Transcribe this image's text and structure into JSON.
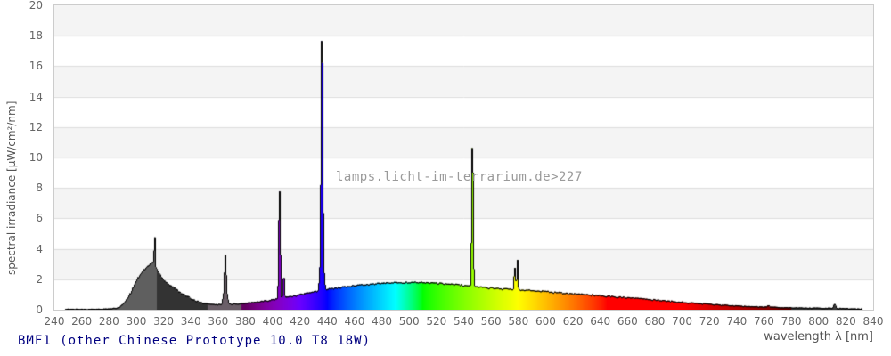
{
  "chart_data": {
    "type": "area",
    "title": "BMF1 (other Chinese Prototype 10.0 T8 18W)",
    "xlabel": "wavelength λ [nm]",
    "ylabel": "spectral irradiance [µW/cm²/nm]",
    "watermark": "lamps.licht-im-terrarium.de>227",
    "xlim": [
      240,
      840
    ],
    "ylim": [
      0,
      20
    ],
    "x_ticks": [
      240,
      260,
      280,
      300,
      320,
      340,
      360,
      380,
      400,
      420,
      440,
      460,
      480,
      500,
      520,
      540,
      560,
      580,
      600,
      620,
      640,
      660,
      680,
      700,
      720,
      740,
      760,
      780,
      800,
      820,
      840
    ],
    "y_ticks": [
      0,
      2,
      4,
      6,
      8,
      10,
      12,
      14,
      16,
      18,
      20
    ],
    "grid": "horizontal gridlines every 2 units, alternating shaded bands",
    "legend": "none",
    "data_range_nm": [
      248,
      832
    ],
    "continuum_points": [
      [
        248,
        0.05
      ],
      [
        260,
        0.05
      ],
      [
        270,
        0.05
      ],
      [
        280,
        0.07
      ],
      [
        285,
        0.12
      ],
      [
        288,
        0.2
      ],
      [
        292,
        0.55
      ],
      [
        296,
        1.15
      ],
      [
        300,
        1.95
      ],
      [
        304,
        2.5
      ],
      [
        307,
        2.75
      ],
      [
        310,
        3.0
      ],
      [
        312,
        3.15
      ],
      [
        314,
        2.8
      ],
      [
        316,
        2.45
      ],
      [
        320,
        1.95
      ],
      [
        324,
        1.65
      ],
      [
        328,
        1.4
      ],
      [
        332,
        1.15
      ],
      [
        336,
        0.92
      ],
      [
        340,
        0.75
      ],
      [
        344,
        0.58
      ],
      [
        348,
        0.46
      ],
      [
        352,
        0.4
      ],
      [
        358,
        0.35
      ],
      [
        362,
        0.36
      ],
      [
        368,
        0.4
      ],
      [
        374,
        0.39
      ],
      [
        380,
        0.44
      ],
      [
        386,
        0.5
      ],
      [
        392,
        0.57
      ],
      [
        398,
        0.65
      ],
      [
        404,
        0.73
      ],
      [
        410,
        0.84
      ],
      [
        416,
        0.94
      ],
      [
        422,
        1.04
      ],
      [
        428,
        1.14
      ],
      [
        434,
        1.25
      ],
      [
        440,
        1.35
      ],
      [
        446,
        1.43
      ],
      [
        452,
        1.5
      ],
      [
        458,
        1.57
      ],
      [
        464,
        1.63
      ],
      [
        470,
        1.68
      ],
      [
        478,
        1.73
      ],
      [
        486,
        1.77
      ],
      [
        494,
        1.79
      ],
      [
        502,
        1.8
      ],
      [
        510,
        1.79
      ],
      [
        518,
        1.76
      ],
      [
        526,
        1.71
      ],
      [
        534,
        1.66
      ],
      [
        542,
        1.6
      ],
      [
        550,
        1.52
      ],
      [
        558,
        1.46
      ],
      [
        566,
        1.4
      ],
      [
        574,
        1.36
      ],
      [
        582,
        1.32
      ],
      [
        590,
        1.27
      ],
      [
        598,
        1.22
      ],
      [
        606,
        1.16
      ],
      [
        614,
        1.1
      ],
      [
        622,
        1.05
      ],
      [
        630,
        1.0
      ],
      [
        640,
        0.94
      ],
      [
        650,
        0.87
      ],
      [
        660,
        0.8
      ],
      [
        670,
        0.73
      ],
      [
        680,
        0.66
      ],
      [
        690,
        0.58
      ],
      [
        700,
        0.51
      ],
      [
        710,
        0.44
      ],
      [
        720,
        0.38
      ],
      [
        730,
        0.32
      ],
      [
        740,
        0.27
      ],
      [
        750,
        0.23
      ],
      [
        760,
        0.2
      ],
      [
        770,
        0.17
      ],
      [
        780,
        0.15
      ],
      [
        790,
        0.13
      ],
      [
        800,
        0.12
      ],
      [
        810,
        0.11
      ],
      [
        818,
        0.1
      ],
      [
        826,
        0.08
      ],
      [
        832,
        0.06
      ]
    ],
    "emission_peaks": [
      {
        "nm": 313.2,
        "value": 5.4,
        "width_nm": 0.7
      },
      {
        "nm": 365.0,
        "value": 3.6,
        "width_nm": 1.0
      },
      {
        "nm": 365.0,
        "value": 1.5,
        "width_nm": 2.2
      },
      {
        "nm": 404.7,
        "value": 8.0,
        "width_nm": 0.9
      },
      {
        "nm": 407.8,
        "value": 2.3,
        "width_nm": 1.0
      },
      {
        "nm": 435.8,
        "value": 18.9,
        "width_nm": 1.0
      },
      {
        "nm": 435.8,
        "value": 6.5,
        "width_nm": 1.7
      },
      {
        "nm": 435.8,
        "value": 2.8,
        "width_nm": 3.2
      },
      {
        "nm": 546.1,
        "value": 11.3,
        "width_nm": 0.9
      },
      {
        "nm": 546.1,
        "value": 3.2,
        "width_nm": 1.7
      },
      {
        "nm": 577.0,
        "value": 2.95,
        "width_nm": 0.8
      },
      {
        "nm": 579.1,
        "value": 3.3,
        "width_nm": 0.8
      },
      {
        "nm": 578.0,
        "value": 1.9,
        "width_nm": 1.8
      },
      {
        "nm": 763.0,
        "value": 0.3,
        "width_nm": 1.5
      },
      {
        "nm": 811.5,
        "value": 0.37,
        "width_nm": 1.3
      }
    ],
    "color_zones": {
      "uvb_end_nm": 315,
      "uvb_fill": "#5f5f5f",
      "uva_dark_end_nm": 352,
      "uva_dark_fill": "#333333",
      "uva_gray_end_nm": 377,
      "uva_gray_fill": "#6b5f68",
      "visible_end_nm": 780,
      "ir_fill": "#3c3c3c"
    },
    "colors": {
      "background": "#ffffff",
      "band_stripe": "#f4f4f4",
      "gridline": "#dddddd",
      "plot_border": "#cccccc",
      "curve_outline": "#000000",
      "tick_text": "#666666",
      "axis_title_text": "#555555",
      "watermark_text": "#9a9a9a",
      "title_text": "#000080"
    }
  }
}
